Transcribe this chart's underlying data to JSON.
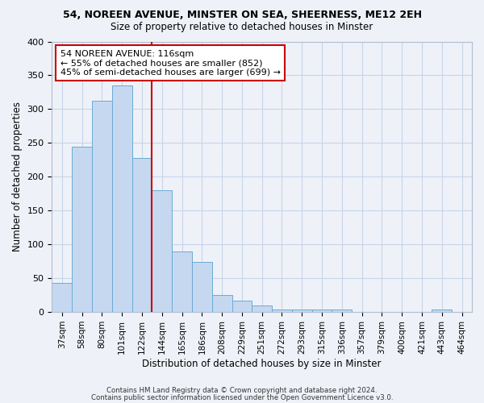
{
  "title_line1": "54, NOREEN AVENUE, MINSTER ON SEA, SHEERNESS, ME12 2EH",
  "title_line2": "Size of property relative to detached houses in Minster",
  "xlabel": "Distribution of detached houses by size in Minster",
  "ylabel": "Number of detached properties",
  "bar_labels": [
    "37sqm",
    "58sqm",
    "80sqm",
    "101sqm",
    "122sqm",
    "144sqm",
    "165sqm",
    "186sqm",
    "208sqm",
    "229sqm",
    "251sqm",
    "272sqm",
    "293sqm",
    "315sqm",
    "336sqm",
    "357sqm",
    "379sqm",
    "400sqm",
    "421sqm",
    "443sqm",
    "464sqm"
  ],
  "bar_heights": [
    43,
    245,
    312,
    335,
    228,
    180,
    90,
    74,
    25,
    17,
    10,
    4,
    4,
    4,
    4,
    0,
    0,
    0,
    0,
    4,
    0
  ],
  "bar_color": "#c5d8f0",
  "bar_edge_color": "#6aabd4",
  "vline_color": "#cc0000",
  "annotation_text": "54 NOREEN AVENUE: 116sqm\n← 55% of detached houses are smaller (852)\n45% of semi-detached houses are larger (699) →",
  "annotation_box_color": "#ffffff",
  "annotation_box_edge": "#cc0000",
  "ylim": [
    0,
    400
  ],
  "yticks": [
    0,
    50,
    100,
    150,
    200,
    250,
    300,
    350,
    400
  ],
  "footer_line1": "Contains HM Land Registry data © Crown copyright and database right 2024.",
  "footer_line2": "Contains public sector information licensed under the Open Government Licence v3.0.",
  "grid_color": "#c8d4e8",
  "bg_color": "#eef2f8"
}
